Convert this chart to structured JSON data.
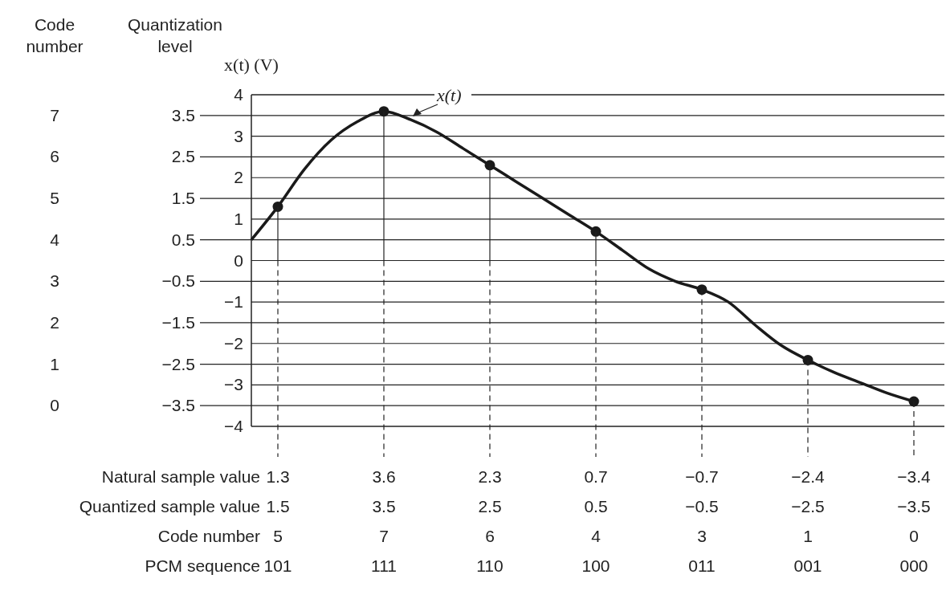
{
  "chart_data": {
    "type": "line",
    "ylabel": "x(t) (V)",
    "y2label": "Quantization level",
    "categories": [
      null,
      null,
      null,
      null,
      null,
      null,
      null,
      null,
      null,
      null,
      null,
      null,
      null,
      null,
      null,
      null,
      null,
      null,
      null,
      null,
      null,
      null,
      null,
      null,
      null,
      null
    ],
    "ylim": [
      -4,
      4
    ],
    "yticks": [
      -4,
      -3,
      -2,
      -1,
      0,
      1,
      2,
      3,
      4
    ],
    "y2lim": [
      -4,
      4
    ],
    "y2ticks": [
      -3.5,
      -2.5,
      -1.5,
      -0.5,
      0.5,
      1.5,
      2.5,
      3.5
    ],
    "tick_labels": "y",
    "grid": "y",
    "series": [
      {
        "name": "x(t)",
        "color": "#1a1a1a",
        "marker": "none",
        "values": [
          0.5,
          1.3,
          2.2,
          2.9,
          3.35,
          3.6,
          3.4,
          3.1,
          2.7,
          2.3,
          1.9,
          1.5,
          1.1,
          0.7,
          0.25,
          -0.2,
          -0.5,
          -0.7,
          -1.0,
          -1.55,
          -2.05,
          -2.4,
          -2.7,
          -2.95,
          -3.2,
          -3.4
        ]
      },
      {
        "type": "scatter",
        "color": "#1a1a1a",
        "marker": "circle",
        "values": [
          null,
          1.3,
          null,
          null,
          null,
          3.6,
          null,
          null,
          null,
          2.3,
          null,
          null,
          null,
          0.7,
          null,
          null,
          null,
          -0.7,
          null,
          null,
          null,
          -2.4,
          null,
          null,
          null,
          -3.4
        ],
        "value_labels": [
          null,
          "1.3",
          null,
          null,
          null,
          "3.6",
          null,
          null,
          null,
          "2.3",
          null,
          null,
          null,
          "0.7",
          null,
          null,
          null,
          "−0.7",
          null,
          null,
          null,
          "−2.4",
          null,
          null,
          null,
          "−3.4"
        ]
      }
    ],
    "annotations": [
      "Code number",
      "7",
      "6",
      "5",
      "4",
      "3",
      "2",
      "1",
      "0",
      "Natural sample value",
      "Quantized sample value",
      "1.5",
      "3.5",
      "2.5",
      "0.5",
      "−0.5",
      "−2.5",
      "−3.5",
      "Code number",
      "5",
      "7",
      "6",
      "4",
      "3",
      "1",
      "0",
      "PCM sequence",
      "101",
      "111",
      "110",
      "100",
      "011",
      "001",
      "000"
    ]
  }
}
